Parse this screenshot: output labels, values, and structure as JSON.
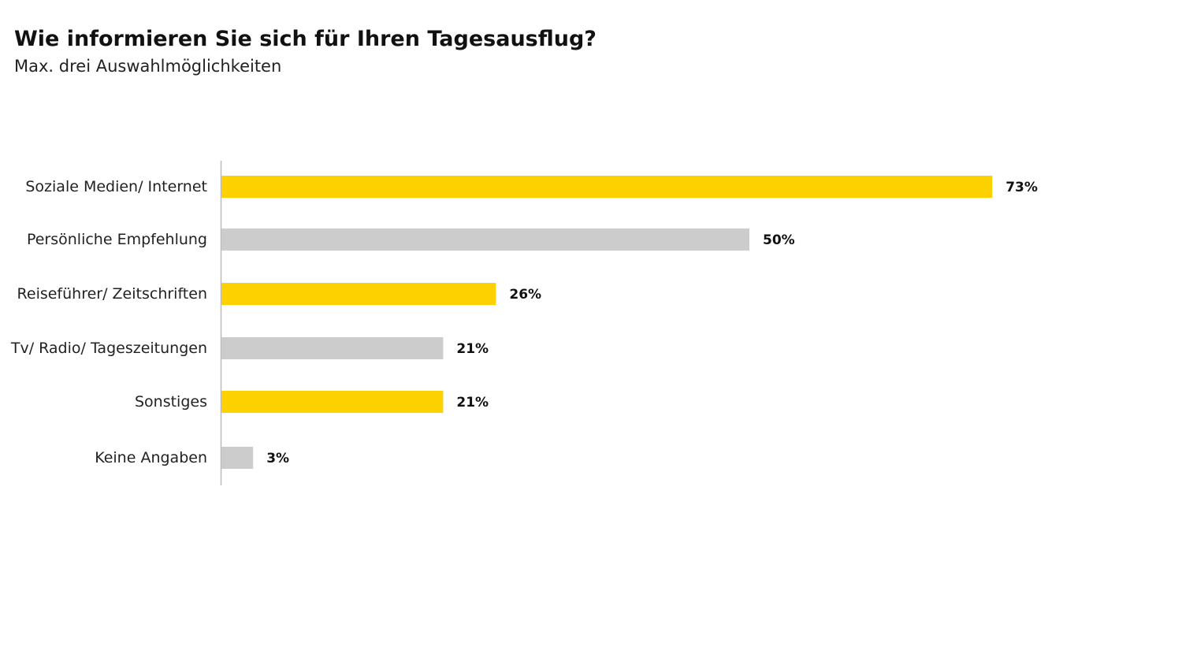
{
  "chart_data": {
    "type": "bar",
    "orientation": "horizontal",
    "title": "Wie informieren Sie sich für Ihren Tagesausflug?",
    "subtitle": "Max. drei Auswahlmöglichkeiten",
    "categories": [
      "Soziale Medien/ Internet",
      "Persönliche Empfehlung",
      "Reiseführer/ Zeitschriften",
      "Tv/ Radio/ Tageszeitungen",
      "Sonstiges",
      "Keine Angaben"
    ],
    "values": [
      73,
      50,
      26,
      21,
      21,
      3
    ],
    "value_labels": [
      "73%",
      "50%",
      "26%",
      "21%",
      "21%",
      "3%"
    ],
    "unit": "%",
    "bar_colors": [
      "#FDD000",
      "#CCCCCC",
      "#FDD000",
      "#CCCCCC",
      "#FDD000",
      "#CCCCCC"
    ],
    "axis_color": "#BBBBBB",
    "grid": false,
    "legend": "none"
  }
}
